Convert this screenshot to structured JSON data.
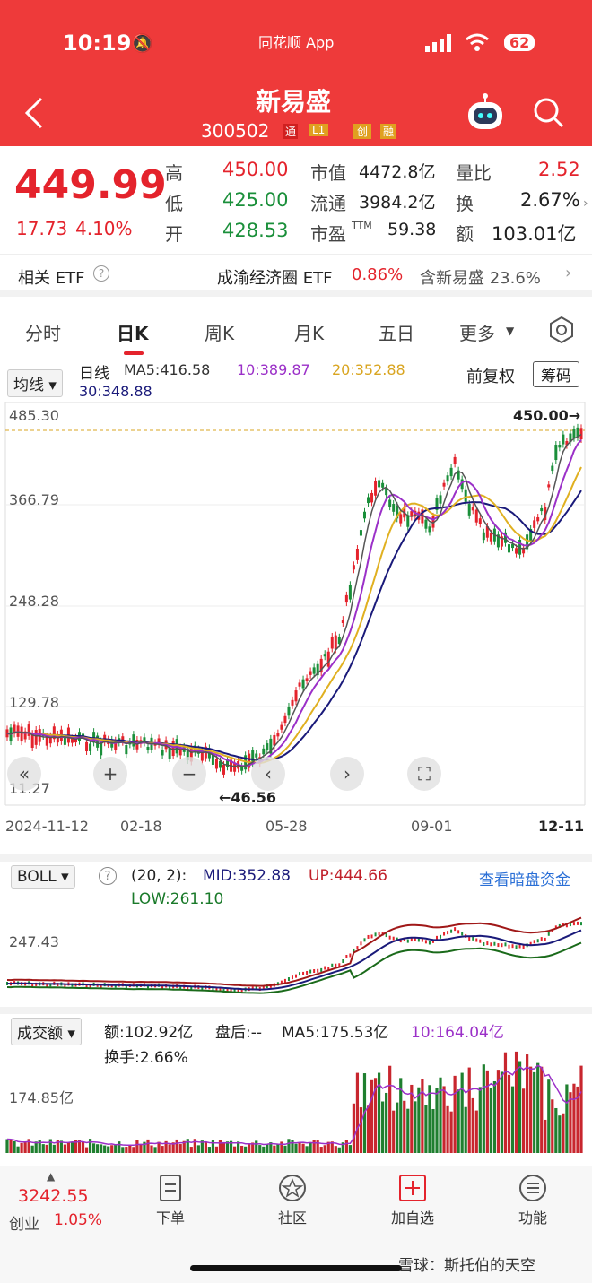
{
  "status": {
    "time": "10:19",
    "app_name": "同花顺 App",
    "battery": "62"
  },
  "header": {
    "title": "新易盛",
    "code": "300502",
    "badge_tong": "通",
    "badge_l1": "L1",
    "badge_chuang": "创",
    "badge_rong": "融"
  },
  "quote": {
    "price": "449.99",
    "change": "17.73",
    "change_pct": "4.10%",
    "high_label": "高",
    "high": "450.00",
    "low_label": "低",
    "low": "425.00",
    "open_label": "开",
    "open": "428.53",
    "mcap_label": "市值",
    "mcap": "4472.8亿",
    "float_label": "流通",
    "float": "3984.2亿",
    "pe_label": "市盈",
    "pe_sup": "TTM",
    "pe": "59.38",
    "vr_label": "量比",
    "vr": "2.52",
    "turnover_label": "换",
    "turnover": "2.67%",
    "amount_label": "额",
    "amount": "103.01亿"
  },
  "etf": {
    "label": "相关 ETF",
    "name": "成渝经济圈 ETF",
    "pct": "0.86%",
    "hold": "含新易盛 23.6%"
  },
  "tabs": [
    "分时",
    "日K",
    "周K",
    "月K",
    "五日",
    "更多"
  ],
  "main_chart": {
    "selector": "均线",
    "title": "日线",
    "ma5": "MA5:416.58",
    "ma10": "10:389.87",
    "ma20": "20:352.88",
    "ma30": "30:348.88",
    "adjust": "前复权",
    "chips": "筹码",
    "y_labels": [
      "485.30",
      "366.79",
      "248.28",
      "129.78",
      "11.27"
    ],
    "high_mark": "450.00→",
    "low_mark": "←46.56",
    "x_labels": [
      "2024-11-12",
      "02-18",
      "05-28",
      "09-01",
      "12-11"
    ],
    "colors": {
      "ma5": "#333333",
      "ma10": "#9b30c8",
      "ma20": "#e0b020",
      "ma30": "#1a1a7a"
    }
  },
  "boll": {
    "selector": "BOLL",
    "params": "(20, 2):",
    "mid": "MID:352.88",
    "up": "UP:444.66",
    "low": "LOW:261.10",
    "link": "查看暗盘资金",
    "y_label": "247.43"
  },
  "volume": {
    "selector": "成交额",
    "amount": "额:102.92亿",
    "after": "盘后:--",
    "ma5": "MA5:175.53亿",
    "ma10": "10:164.04亿",
    "turnover": "换手:2.66%",
    "y_label": "174.85亿"
  },
  "bottom": {
    "index_value": "3242.55",
    "index_name": "创业",
    "index_pct": "1.05%",
    "items": [
      "下单",
      "社区",
      "加自选",
      "功能"
    ],
    "watermark": "雪球：斯托伯的天空"
  }
}
